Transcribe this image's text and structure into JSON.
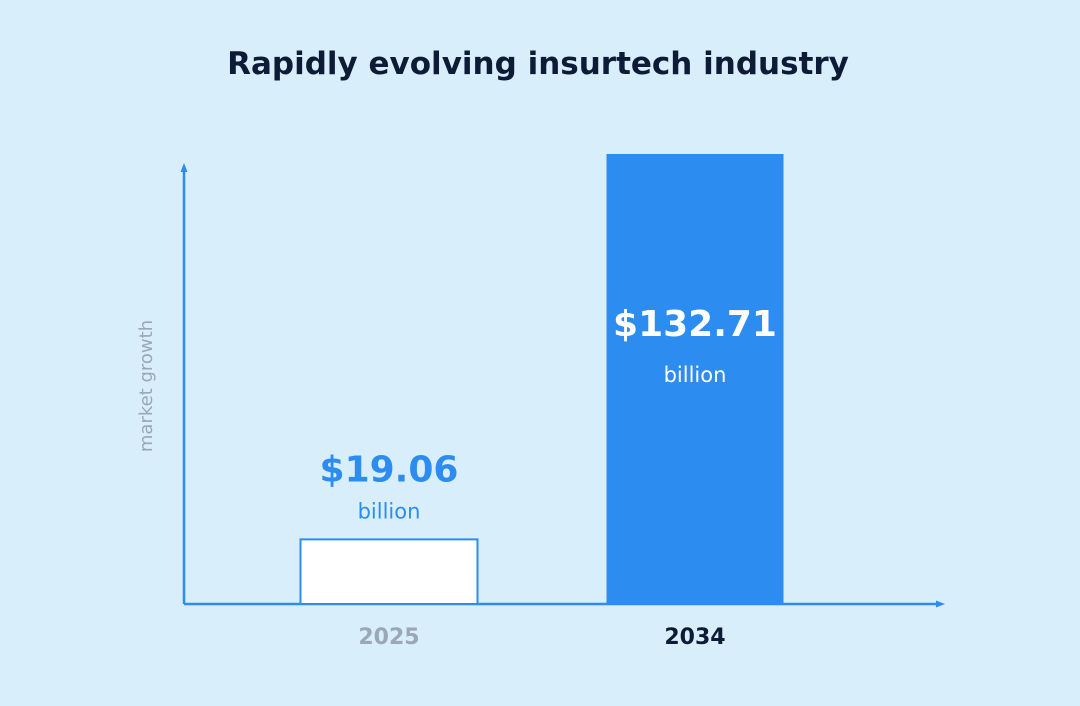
{
  "chart_data": {
    "type": "bar",
    "title": "Rapidly evolving insurtech industry",
    "ylabel": "market growth",
    "categories": [
      "2025",
      "2034"
    ],
    "values": [
      19.06,
      132.71
    ],
    "value_labels": [
      "$19.06",
      "$132.71"
    ],
    "unit_label": "billion",
    "colors": {
      "background": "#d8eefa",
      "axis": "#2d8cf0",
      "accent": "#2d8cf0",
      "bar_2025_fill": "#ffffff",
      "bar_2034_fill": "#2d8cf0",
      "tick_2025": "#9aa7b4",
      "tick_2034": "#0d1b36",
      "title": "#0d1b36"
    }
  }
}
